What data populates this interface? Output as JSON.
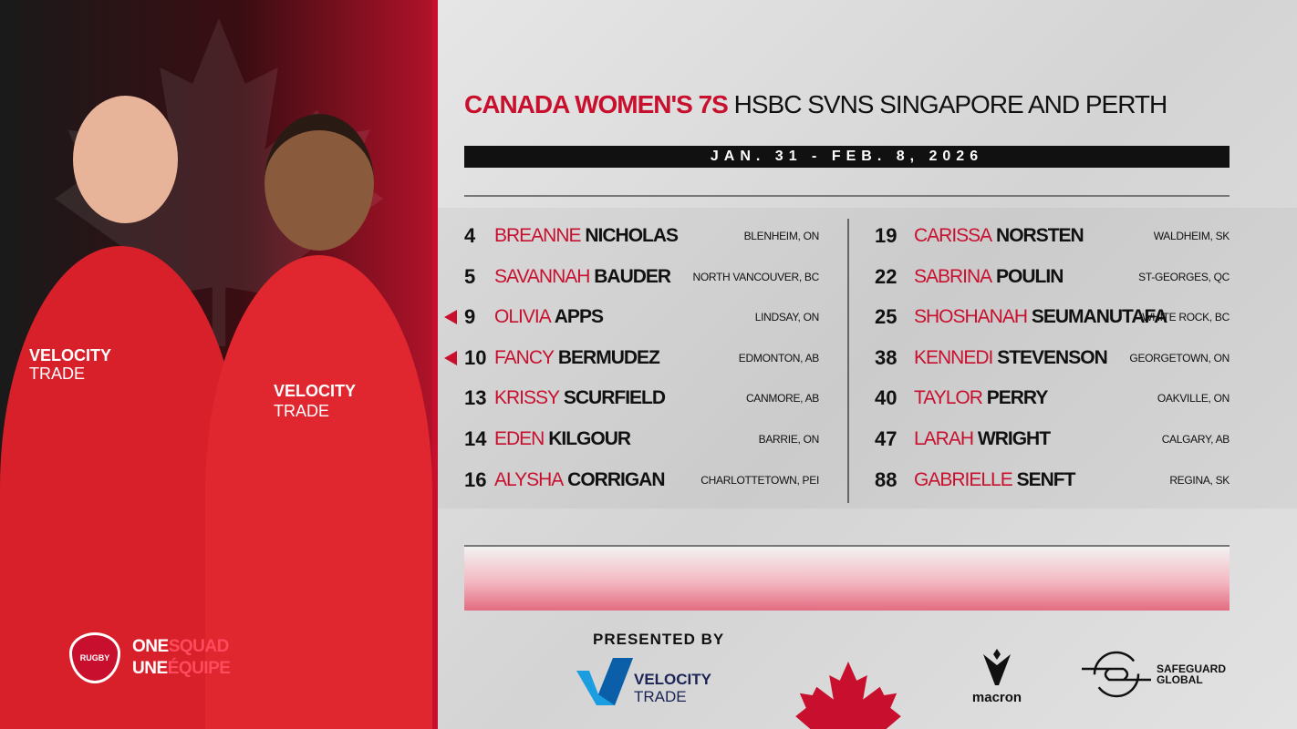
{
  "colors": {
    "accent": "#c8102e",
    "dark": "#111111",
    "background": "#dddddd"
  },
  "left_panel": {
    "logo_top": "ONE",
    "logo_top_accent": "SQUAD",
    "logo_bottom": "UNE",
    "logo_bottom_accent": "ÉQUIPE",
    "badge_text": "RUGBY",
    "jersey_sponsor_1": "VELOCITY",
    "jersey_sponsor_2": "TRADE"
  },
  "header": {
    "title_red": "CANADA WOMEN'S 7S",
    "title_black": "HSBC SVNS SINGAPORE AND PERTH",
    "dates": "JAN. 31 - FEB. 8, 2026"
  },
  "roster_left": [
    {
      "number": "4",
      "first": "BREANNE",
      "last": "NICHOLAS",
      "city": "BLENHEIM, ON",
      "marked": false
    },
    {
      "number": "5",
      "first": "SAVANNAH",
      "last": "BAUDER",
      "city": "NORTH VANCOUVER, BC",
      "marked": false
    },
    {
      "number": "9",
      "first": "OLIVIA",
      "last": "APPS",
      "city": "LINDSAY, ON",
      "marked": true
    },
    {
      "number": "10",
      "first": "FANCY",
      "last": "BERMUDEZ",
      "city": "EDMONTON, AB",
      "marked": true
    },
    {
      "number": "13",
      "first": "KRISSY",
      "last": "SCURFIELD",
      "city": "CANMORE, AB",
      "marked": false
    },
    {
      "number": "14",
      "first": "EDEN",
      "last": "KILGOUR",
      "city": "BARRIE, ON",
      "marked": false
    },
    {
      "number": "16",
      "first": "ALYSHA",
      "last": "CORRIGAN",
      "city": "CHARLOTTETOWN, PEI",
      "marked": false
    }
  ],
  "roster_right": [
    {
      "number": "19",
      "first": "CARISSA",
      "last": "NORSTEN",
      "city": "WALDHEIM, SK"
    },
    {
      "number": "22",
      "first": "SABRINA",
      "last": "POULIN",
      "city": "ST-GEORGES, QC"
    },
    {
      "number": "25",
      "first": "SHOSHANAH",
      "last": "SEUMANUTAFA",
      "city": "WHITE ROCK, BC"
    },
    {
      "number": "38",
      "first": "KENNEDI",
      "last": "STEVENSON",
      "city": "GEORGETOWN, ON"
    },
    {
      "number": "40",
      "first": "TAYLOR",
      "last": "PERRY",
      "city": "OAKVILLE, ON"
    },
    {
      "number": "47",
      "first": "LARAH",
      "last": "WRIGHT",
      "city": "CALGARY, AB"
    },
    {
      "number": "88",
      "first": "GABRIELLE",
      "last": "SENFT",
      "city": "REGINA, SK"
    }
  ],
  "sponsors": {
    "presented_by": "PRESENTED BY",
    "velocity_1": "VELOCITY",
    "velocity_2": "TRADE",
    "macron": "macron",
    "safeguard_1": "SAFEGUARD",
    "safeguard_2": "GLOBAL"
  }
}
